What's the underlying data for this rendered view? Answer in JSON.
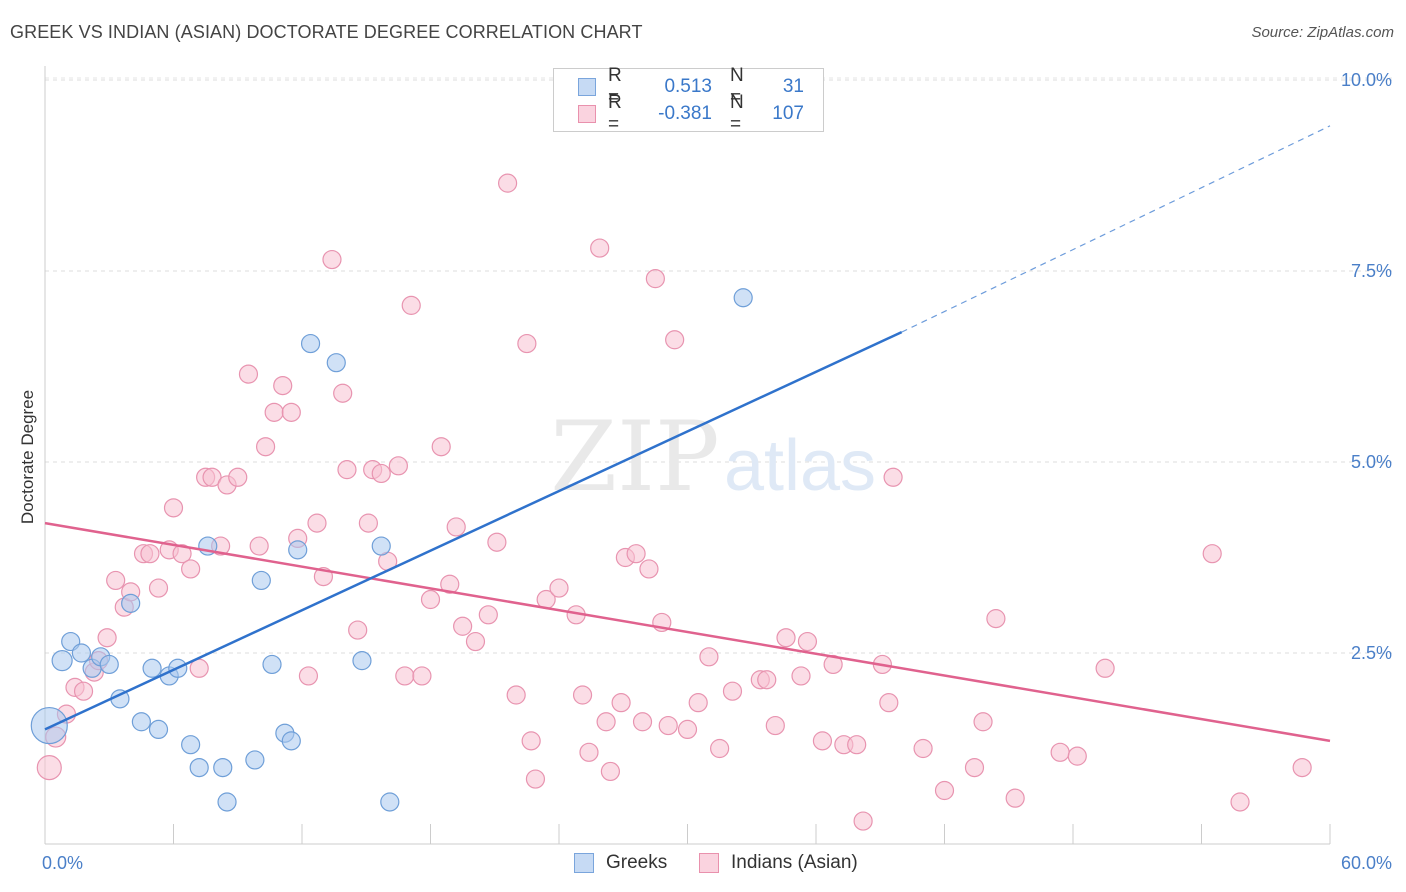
{
  "header": {
    "title": "GREEK VS INDIAN (ASIAN) DOCTORATE DEGREE CORRELATION CHART",
    "source": "Source: ZipAtlas.com"
  },
  "watermark": {
    "zip": "ZIP",
    "atlas": "atlas"
  },
  "legend": {
    "rows": [
      {
        "r_label": "R =",
        "r_value": "0.513",
        "n_label": "N =",
        "n_value": "31",
        "color": "#a9c8ef",
        "border": "#7aa5dc"
      },
      {
        "r_label": "R =",
        "r_value": "-0.381",
        "n_label": "N =",
        "n_value": "107",
        "color": "#f8c1d2",
        "border": "#e991ad"
      }
    ]
  },
  "bottom_legend": {
    "greeks": "Greeks",
    "indians": "Indians (Asian)"
  },
  "chart_data": {
    "type": "scatter",
    "title": "GREEK VS INDIAN (ASIAN) DOCTORATE DEGREE CORRELATION CHART",
    "ylabel": "Doctorate Degree",
    "xlabel": "",
    "xlim": [
      0,
      60
    ],
    "ylim": [
      0,
      10.5
    ],
    "x_tick_labels": [
      "0.0%",
      "60.0%"
    ],
    "y_tick_labels": [
      "2.5%",
      "5.0%",
      "7.5%",
      "10.0%"
    ],
    "y_ticks": [
      2.5,
      5.0,
      7.5,
      10.0
    ],
    "grid": "horizontal dashed",
    "legend_position": "top-center",
    "series": [
      {
        "name": "Greeks",
        "color": "#a9c8ef",
        "stroke": "#6f9fd8",
        "trend_color": "#2f72cc",
        "trend": {
          "x0": 0,
          "y0": 1.5,
          "x1": 40,
          "y1": 6.7,
          "dash_to_x": 60,
          "dash_to_y": 9.4
        },
        "points": [
          [
            0.2,
            1.55
          ],
          [
            0.8,
            2.4
          ],
          [
            1.2,
            2.65
          ],
          [
            1.7,
            2.5
          ],
          [
            2.2,
            2.3
          ],
          [
            2.6,
            2.45
          ],
          [
            3.0,
            2.35
          ],
          [
            3.5,
            1.9
          ],
          [
            4.0,
            3.15
          ],
          [
            4.5,
            1.6
          ],
          [
            5.0,
            2.3
          ],
          [
            5.3,
            1.5
          ],
          [
            5.8,
            2.2
          ],
          [
            6.2,
            2.3
          ],
          [
            6.8,
            1.3
          ],
          [
            7.2,
            1.0
          ],
          [
            7.6,
            3.9
          ],
          [
            8.3,
            1.0
          ],
          [
            8.5,
            0.55
          ],
          [
            9.8,
            1.1
          ],
          [
            10.1,
            3.45
          ],
          [
            10.6,
            2.35
          ],
          [
            11.2,
            1.45
          ],
          [
            11.5,
            1.35
          ],
          [
            11.8,
            3.85
          ],
          [
            12.4,
            6.55
          ],
          [
            13.6,
            6.3
          ],
          [
            14.8,
            2.4
          ],
          [
            15.7,
            3.9
          ],
          [
            16.1,
            0.55
          ],
          [
            32.6,
            7.15
          ]
        ],
        "sizes": [
          18,
          10,
          9,
          9,
          9,
          9,
          9,
          9,
          9,
          9,
          9,
          9,
          9,
          9,
          9,
          9,
          9,
          9,
          9,
          9,
          9,
          9,
          9,
          9,
          9,
          9,
          9,
          9,
          9,
          9,
          9
        ]
      },
      {
        "name": "Indians (Asian)",
        "color": "#f8c1d2",
        "stroke": "#e894b0",
        "trend_color": "#e0628e",
        "trend": {
          "x0": 0,
          "y0": 4.2,
          "x1": 60,
          "y1": 1.35
        },
        "points": [
          [
            0.2,
            1.0
          ],
          [
            0.5,
            1.4
          ],
          [
            1.0,
            1.7
          ],
          [
            1.4,
            2.05
          ],
          [
            1.8,
            2.0
          ],
          [
            2.3,
            2.25
          ],
          [
            2.5,
            2.4
          ],
          [
            2.9,
            2.7
          ],
          [
            3.3,
            3.45
          ],
          [
            3.7,
            3.1
          ],
          [
            4.0,
            3.3
          ],
          [
            4.6,
            3.8
          ],
          [
            4.9,
            3.8
          ],
          [
            5.3,
            3.35
          ],
          [
            5.8,
            3.85
          ],
          [
            6.0,
            4.4
          ],
          [
            6.4,
            3.8
          ],
          [
            6.8,
            3.6
          ],
          [
            7.2,
            2.3
          ],
          [
            7.5,
            4.8
          ],
          [
            7.8,
            4.8
          ],
          [
            8.2,
            3.9
          ],
          [
            8.5,
            4.7
          ],
          [
            9.0,
            4.8
          ],
          [
            9.5,
            6.15
          ],
          [
            10.0,
            3.9
          ],
          [
            10.3,
            5.2
          ],
          [
            10.7,
            5.65
          ],
          [
            11.1,
            6.0
          ],
          [
            11.5,
            5.65
          ],
          [
            11.8,
            4.0
          ],
          [
            12.3,
            2.2
          ],
          [
            12.7,
            4.2
          ],
          [
            13.0,
            3.5
          ],
          [
            13.4,
            7.65
          ],
          [
            13.9,
            5.9
          ],
          [
            14.1,
            4.9
          ],
          [
            14.6,
            2.8
          ],
          [
            15.1,
            4.2
          ],
          [
            15.3,
            4.9
          ],
          [
            15.7,
            4.85
          ],
          [
            16.0,
            3.7
          ],
          [
            16.5,
            4.95
          ],
          [
            16.8,
            2.2
          ],
          [
            17.1,
            7.05
          ],
          [
            17.6,
            2.2
          ],
          [
            18.0,
            3.2
          ],
          [
            18.5,
            5.2
          ],
          [
            18.9,
            3.4
          ],
          [
            19.2,
            4.15
          ],
          [
            19.5,
            2.85
          ],
          [
            20.1,
            2.65
          ],
          [
            20.7,
            3.0
          ],
          [
            21.1,
            3.95
          ],
          [
            21.6,
            8.65
          ],
          [
            22.0,
            1.95
          ],
          [
            22.5,
            6.55
          ],
          [
            22.7,
            1.35
          ],
          [
            22.9,
            0.85
          ],
          [
            23.4,
            3.2
          ],
          [
            24.0,
            3.35
          ],
          [
            24.8,
            3.0
          ],
          [
            25.1,
            1.95
          ],
          [
            25.4,
            1.2
          ],
          [
            25.9,
            7.8
          ],
          [
            26.2,
            1.6
          ],
          [
            26.4,
            0.95
          ],
          [
            26.9,
            1.85
          ],
          [
            27.1,
            3.75
          ],
          [
            27.6,
            3.8
          ],
          [
            27.9,
            1.6
          ],
          [
            28.2,
            3.6
          ],
          [
            28.5,
            7.4
          ],
          [
            28.8,
            2.9
          ],
          [
            29.1,
            1.55
          ],
          [
            29.4,
            6.6
          ],
          [
            30.0,
            1.5
          ],
          [
            30.5,
            1.85
          ],
          [
            31.0,
            2.45
          ],
          [
            31.5,
            1.25
          ],
          [
            32.1,
            2.0
          ],
          [
            33.4,
            2.15
          ],
          [
            33.7,
            2.15
          ],
          [
            34.1,
            1.55
          ],
          [
            34.6,
            2.7
          ],
          [
            35.3,
            2.2
          ],
          [
            35.6,
            2.65
          ],
          [
            36.3,
            1.35
          ],
          [
            36.8,
            2.35
          ],
          [
            37.3,
            1.3
          ],
          [
            37.9,
            1.3
          ],
          [
            38.2,
            0.3
          ],
          [
            39.1,
            2.35
          ],
          [
            39.4,
            1.85
          ],
          [
            39.6,
            4.8
          ],
          [
            41.0,
            1.25
          ],
          [
            42.0,
            0.7
          ],
          [
            43.4,
            1.0
          ],
          [
            43.8,
            1.6
          ],
          [
            44.4,
            2.95
          ],
          [
            45.3,
            0.6
          ],
          [
            47.4,
            1.2
          ],
          [
            48.2,
            1.15
          ],
          [
            49.5,
            2.3
          ],
          [
            54.5,
            3.8
          ],
          [
            55.8,
            0.55
          ],
          [
            58.7,
            1.0
          ]
        ],
        "sizes": [
          12,
          10,
          9,
          9,
          9,
          9,
          9,
          9,
          9,
          9,
          9,
          9,
          9,
          9,
          9,
          9,
          9,
          9,
          9,
          9,
          9,
          9,
          9,
          9,
          9,
          9,
          9,
          9,
          9,
          9,
          9,
          9,
          9,
          9,
          9,
          9,
          9,
          9,
          9,
          9,
          9,
          9,
          9,
          9,
          9,
          9,
          9,
          9,
          9,
          9,
          9,
          9,
          9,
          9,
          9,
          9,
          9,
          9,
          9,
          9,
          9,
          9,
          9,
          9,
          9,
          9,
          9,
          9,
          9,
          9,
          9,
          9,
          9,
          9,
          9,
          9,
          9,
          9,
          9,
          9,
          9,
          9,
          9,
          9,
          9,
          9,
          9,
          9,
          9,
          9,
          9,
          9,
          9,
          9,
          9,
          9,
          9,
          9,
          9,
          9,
          9,
          9,
          9,
          9,
          9,
          9,
          9
        ]
      }
    ]
  }
}
